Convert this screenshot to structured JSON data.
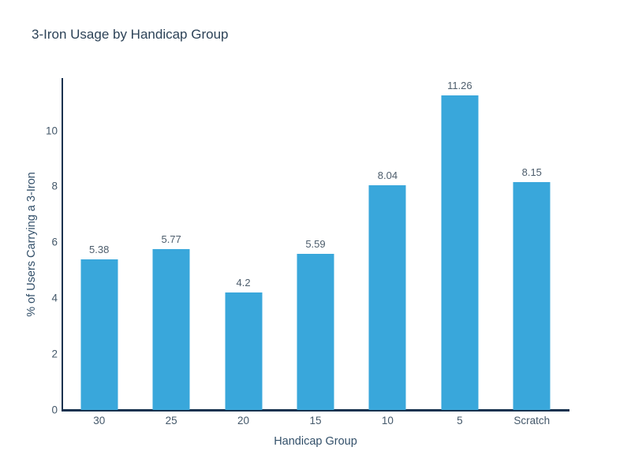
{
  "chart_data": {
    "type": "bar",
    "title": "3-Iron Usage by Handicap Group",
    "xlabel": "Handicap Group",
    "ylabel": "% of Users Carrying a 3-Iron",
    "categories": [
      "30",
      "25",
      "20",
      "15",
      "10",
      "5",
      "Scratch"
    ],
    "values": [
      5.38,
      5.77,
      4.2,
      5.59,
      8.04,
      11.26,
      8.15
    ],
    "data_labels": [
      "5.38",
      "5.77",
      "4.2",
      "5.59",
      "8.04",
      "11.26",
      "8.15"
    ],
    "yticks": [
      0,
      2,
      4,
      6,
      8,
      10
    ],
    "ytick_labels": [
      "0",
      "2",
      "4",
      "6",
      "8",
      "10"
    ],
    "ylim": [
      0,
      11.85
    ],
    "grid": false,
    "legend": "none",
    "colors": {
      "bar": "#39a7db",
      "axis_line": "#16324f",
      "title_text": "#2c4257",
      "axis_title_text": "#33506a",
      "tick_text": "#44586a",
      "data_label_text": "#4d5d6c",
      "background": "#ffffff"
    }
  }
}
